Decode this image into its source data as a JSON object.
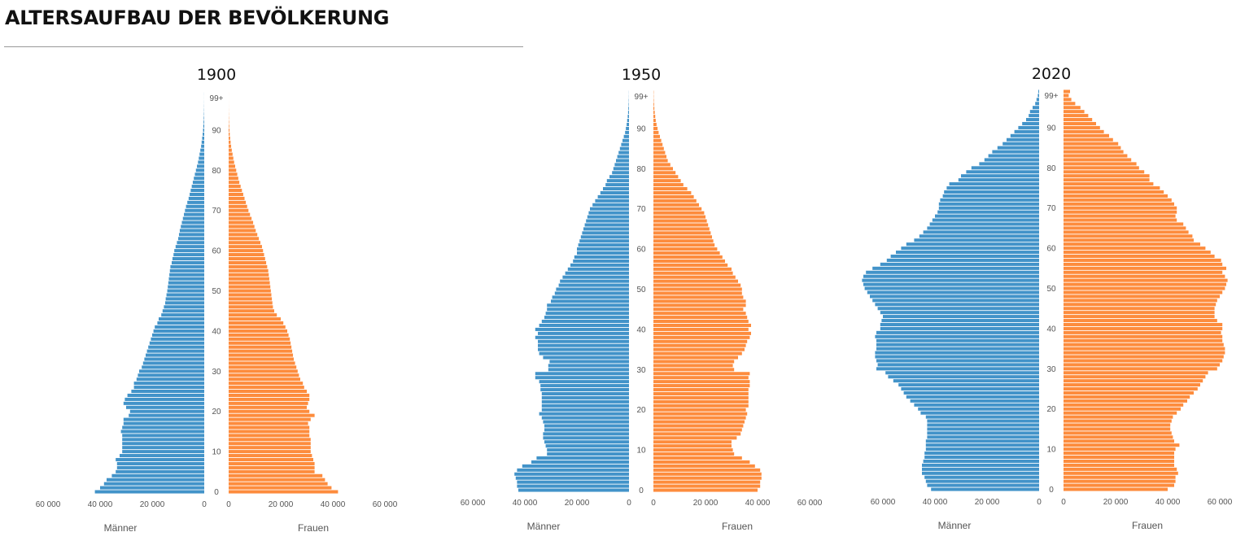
{
  "page": {
    "title": "ALTERSAUFBAU DER BEVÖLKERUNG"
  },
  "colors": {
    "maenner": "#4293c9",
    "frauen": "#fd8c3d"
  },
  "chart_data": [
    {
      "type": "bar",
      "title": "1900",
      "age_top_label": "99+",
      "age_tick_labels": [
        "0",
        "10",
        "20",
        "30",
        "40",
        "50",
        "60",
        "70",
        "80",
        "90"
      ],
      "x_tick_labels_left": [
        "60 000",
        "40 000",
        "20 000",
        "0"
      ],
      "x_tick_labels_right": [
        "0",
        "20 000",
        "40 000",
        "60 000"
      ],
      "xlim": [
        0,
        60000
      ],
      "left_label": "Männer",
      "right_label": "Frauen",
      "ages": "0 to 99+ in steps of 1 year",
      "series": [
        {
          "name": "Männer",
          "values": [
            42000,
            40000,
            38500,
            37500,
            35500,
            34000,
            33500,
            33500,
            34000,
            32500,
            31500,
            31500,
            31500,
            31500,
            31500,
            32000,
            31500,
            31000,
            31000,
            29000,
            28500,
            30000,
            31000,
            30500,
            29500,
            28000,
            27000,
            27000,
            26000,
            25500,
            25000,
            24000,
            23500,
            23000,
            22500,
            22000,
            21500,
            21000,
            20500,
            20000,
            19500,
            19000,
            18000,
            17500,
            16500,
            16000,
            15500,
            15000,
            14800,
            14500,
            14200,
            14000,
            13800,
            13600,
            13400,
            13200,
            13000,
            12500,
            12200,
            11800,
            11500,
            11000,
            10500,
            10000,
            9700,
            9400,
            9000,
            8600,
            8200,
            7800,
            7400,
            7000,
            6500,
            6000,
            5600,
            5200,
            4800,
            4400,
            4000,
            3600,
            3200,
            2800,
            2400,
            2100,
            1800,
            1500,
            1200,
            1000,
            800,
            600,
            450,
            350,
            250,
            180,
            120,
            80,
            50,
            30,
            15,
            20
          ]
        },
        {
          "name": "Frauen",
          "values": [
            42000,
            39500,
            38000,
            37000,
            36000,
            33000,
            33000,
            33000,
            32500,
            32000,
            31500,
            31500,
            31500,
            31500,
            31000,
            31000,
            31000,
            30500,
            31500,
            33000,
            31000,
            30000,
            30500,
            31000,
            31000,
            30000,
            29000,
            28500,
            27500,
            27000,
            26500,
            26000,
            25500,
            25000,
            24700,
            24400,
            24100,
            23800,
            23500,
            23000,
            22500,
            21800,
            21000,
            20000,
            18500,
            17500,
            17000,
            16800,
            16600,
            16400,
            16200,
            16000,
            15800,
            15600,
            15400,
            15200,
            14800,
            14400,
            14000,
            13600,
            13200,
            12800,
            12200,
            11600,
            11000,
            10400,
            9900,
            9400,
            8800,
            8200,
            7600,
            7100,
            6600,
            6100,
            5600,
            5100,
            4600,
            4100,
            3700,
            3300,
            2900,
            2500,
            2100,
            1800,
            1500,
            1200,
            950,
            750,
            570,
            420,
            300,
            210,
            140,
            90,
            55,
            30,
            15,
            8,
            4,
            10
          ]
        }
      ]
    },
    {
      "type": "bar",
      "title": "1950",
      "age_top_label": "99+",
      "age_tick_labels": [
        "0",
        "10",
        "20",
        "30",
        "40",
        "50",
        "60",
        "70",
        "80",
        "90"
      ],
      "x_tick_labels_left": [
        "60 000",
        "40 000",
        "20 000",
        "0"
      ],
      "x_tick_labels_right": [
        "0",
        "20 000",
        "40 000",
        "60 000"
      ],
      "xlim": [
        0,
        60000
      ],
      "left_label": "Männer",
      "right_label": "Frauen",
      "ages": "0 to 99+ in steps of 1 year",
      "series": [
        {
          "name": "Männer",
          "values": [
            42500,
            43000,
            43000,
            43500,
            44000,
            43000,
            41000,
            37500,
            35500,
            31500,
            31500,
            32000,
            32500,
            33000,
            33000,
            32500,
            32500,
            33000,
            33500,
            34500,
            33500,
            33500,
            33500,
            33500,
            33500,
            34000,
            34000,
            34500,
            36000,
            36000,
            31000,
            31000,
            30500,
            33000,
            34500,
            35000,
            35000,
            35000,
            36000,
            35000,
            36000,
            34500,
            33500,
            32500,
            32000,
            31500,
            31500,
            30000,
            29500,
            28500,
            28000,
            27000,
            26500,
            25500,
            24500,
            23500,
            22500,
            21500,
            21000,
            20000,
            20000,
            19500,
            19000,
            18500,
            18000,
            17500,
            17000,
            16500,
            16000,
            15500,
            15000,
            14000,
            13000,
            12000,
            11000,
            10000,
            9000,
            8500,
            7500,
            6500,
            6000,
            5500,
            5000,
            4500,
            4000,
            3500,
            3000,
            2500,
            2000,
            1500,
            1200,
            900,
            700,
            500,
            350,
            250,
            150,
            100,
            50,
            40
          ]
        },
        {
          "name": "Frauen",
          "values": [
            40000,
            41000,
            41000,
            41500,
            41500,
            41000,
            39000,
            37000,
            34000,
            31000,
            30500,
            30000,
            30000,
            32000,
            33500,
            34000,
            34500,
            35000,
            35500,
            36000,
            35500,
            36500,
            36500,
            36500,
            36500,
            36500,
            37000,
            37000,
            36500,
            37000,
            31000,
            30500,
            31000,
            32500,
            34000,
            35000,
            35500,
            36000,
            37000,
            37500,
            36500,
            37500,
            36500,
            36000,
            35500,
            34500,
            35500,
            35500,
            34500,
            34000,
            34000,
            33500,
            32500,
            31500,
            30500,
            30000,
            28500,
            27500,
            26500,
            25500,
            24500,
            23500,
            23000,
            22500,
            22000,
            21500,
            21000,
            20500,
            20000,
            19500,
            18500,
            17500,
            16500,
            15500,
            14500,
            13000,
            11500,
            10500,
            9500,
            8500,
            7500,
            6500,
            5500,
            5000,
            4500,
            4000,
            3500,
            3000,
            2500,
            2000,
            1600,
            1200,
            900,
            700,
            500,
            350,
            250,
            150,
            100,
            100
          ]
        }
      ]
    },
    {
      "type": "bar",
      "title": "2020",
      "age_top_label": "99+",
      "age_tick_labels": [
        "0",
        "10",
        "20",
        "30",
        "40",
        "50",
        "60",
        "70",
        "80",
        "90"
      ],
      "x_tick_labels_left": [
        "60 000",
        "40 000",
        "20 000",
        "0"
      ],
      "x_tick_labels_right": [
        "0",
        "20 000",
        "40 000",
        "60 000"
      ],
      "xlim": [
        0,
        60000
      ],
      "left_label": "Männer",
      "right_label": "Frauen",
      "ages": "0 to 99+ in steps of 1 year",
      "series": [
        {
          "name": "Männer",
          "values": [
            41500,
            43000,
            43500,
            44000,
            45000,
            45000,
            45000,
            44500,
            44000,
            44000,
            43500,
            43500,
            43500,
            43000,
            43000,
            43000,
            43000,
            43000,
            43500,
            45500,
            46500,
            48000,
            49500,
            51000,
            52000,
            53000,
            54000,
            56000,
            58000,
            59000,
            62500,
            62000,
            62500,
            63000,
            63000,
            62500,
            62500,
            62500,
            63000,
            62500,
            61000,
            61000,
            60500,
            60000,
            61000,
            62000,
            63000,
            64000,
            65000,
            66000,
            67000,
            67500,
            68000,
            67500,
            66500,
            64000,
            61000,
            58500,
            57000,
            55000,
            53000,
            51000,
            48000,
            46000,
            44500,
            43000,
            42000,
            41000,
            40000,
            39000,
            38500,
            38500,
            38000,
            37000,
            36500,
            35500,
            34500,
            31000,
            30000,
            28000,
            26000,
            23000,
            21000,
            19500,
            18000,
            16000,
            14000,
            12500,
            11000,
            9500,
            8000,
            6500,
            5000,
            4000,
            3500,
            2500,
            1500,
            1000,
            500,
            300
          ]
        },
        {
          "name": "Frauen",
          "values": [
            40000,
            42500,
            43000,
            43000,
            44000,
            43500,
            42500,
            42500,
            42500,
            42500,
            43000,
            44500,
            42500,
            42000,
            41500,
            41000,
            41000,
            41500,
            42000,
            43500,
            45000,
            46000,
            47500,
            48500,
            50000,
            51500,
            52500,
            53500,
            54500,
            55500,
            59000,
            60000,
            61000,
            61500,
            62000,
            62000,
            61500,
            61000,
            61000,
            60500,
            61000,
            61000,
            59000,
            58000,
            58000,
            58000,
            58500,
            59000,
            60000,
            61000,
            62000,
            62500,
            63000,
            62000,
            61000,
            62500,
            61000,
            60500,
            58000,
            56500,
            54500,
            52500,
            50000,
            49500,
            48000,
            47000,
            46000,
            43500,
            43000,
            43500,
            43500,
            42500,
            41500,
            40000,
            38500,
            37000,
            34500,
            33000,
            33000,
            31000,
            29000,
            28000,
            26000,
            24500,
            23000,
            22000,
            21000,
            19000,
            17500,
            15500,
            14000,
            12500,
            11000,
            9500,
            8000,
            6500,
            4500,
            3000,
            2000,
            2500
          ]
        }
      ]
    }
  ]
}
